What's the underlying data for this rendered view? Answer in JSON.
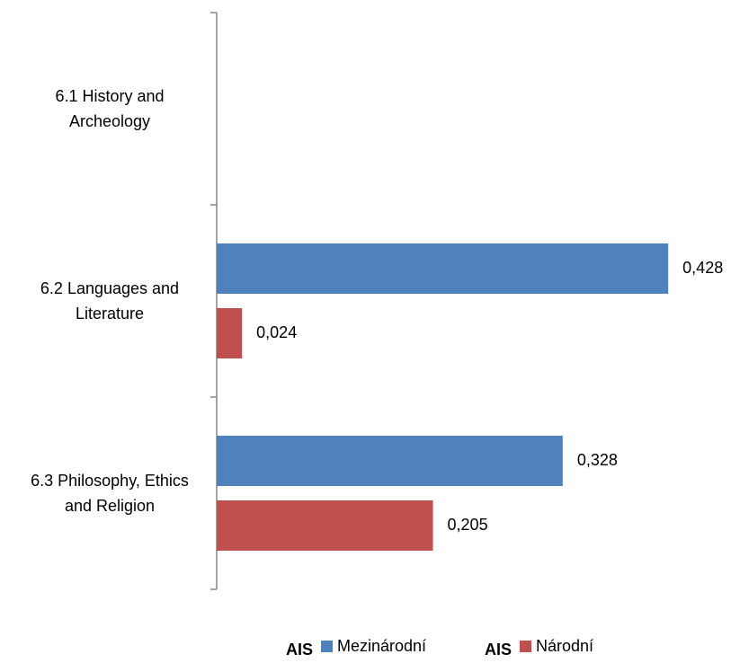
{
  "chart_data": {
    "type": "hbar",
    "categories": [
      "6.1 History and Archeology",
      "6.2 Languages and Literature",
      "6.3 Philosophy, Ethics and Religion"
    ],
    "series": [
      {
        "name": "Mezinárodní",
        "group": "AIS",
        "color": "#4f81bd",
        "values": [
          null,
          0.428,
          0.328
        ],
        "value_labels": [
          null,
          "0,428",
          "0,328"
        ]
      },
      {
        "name": "Národní",
        "group": "AIS",
        "color": "#c0504d",
        "values": [
          null,
          0.024,
          0.205
        ],
        "value_labels": [
          null,
          "0,024",
          "0,205"
        ]
      }
    ],
    "xlim": [
      0,
      0.45
    ],
    "legend": "bottom"
  }
}
